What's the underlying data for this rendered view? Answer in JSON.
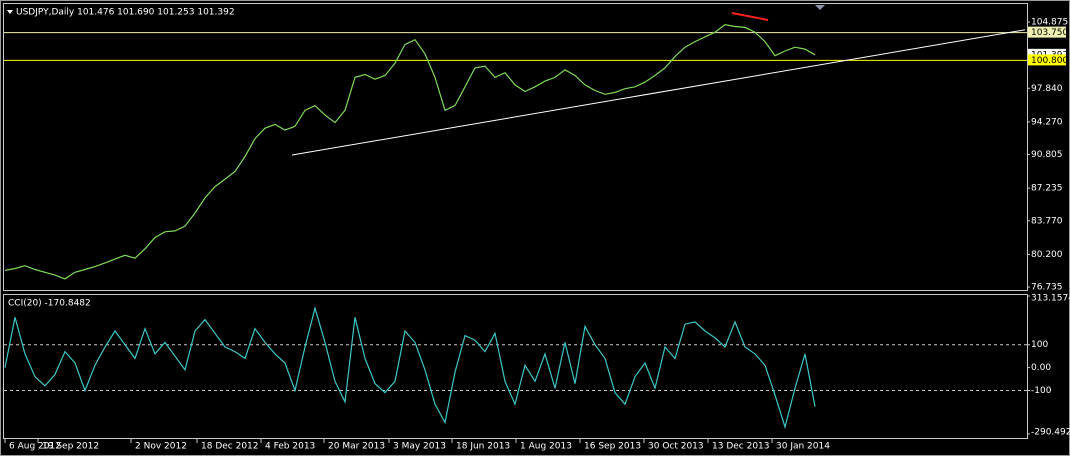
{
  "chart_data": [
    {
      "type": "line",
      "title": "USDJPY,Daily  101.476 101.690 101.253 101.392",
      "x": [
        0,
        1,
        2,
        3,
        4,
        5,
        6,
        7,
        8,
        9,
        10,
        11,
        12,
        13,
        14,
        15,
        16,
        17,
        18,
        19,
        20,
        21,
        22,
        23,
        24,
        25,
        26,
        27,
        28,
        29,
        30,
        31,
        32,
        33,
        34,
        35,
        36,
        37,
        38,
        39,
        40,
        41,
        42,
        43,
        44,
        45,
        46,
        47,
        48,
        49,
        50,
        51,
        52,
        53,
        54,
        55,
        56,
        57,
        58,
        59,
        60,
        61,
        62,
        63,
        64,
        65,
        66,
        67,
        68,
        69,
        70,
        71,
        72,
        73,
        74,
        75,
        76,
        77,
        78,
        79,
        80,
        81
      ],
      "values": [
        78.5,
        78.7,
        79.0,
        78.6,
        78.3,
        78.0,
        77.6,
        78.3,
        78.6,
        78.9,
        79.3,
        79.7,
        80.1,
        79.8,
        80.8,
        82.0,
        82.6,
        82.7,
        83.2,
        84.6,
        86.2,
        87.4,
        88.2,
        89.0,
        90.6,
        92.5,
        93.6,
        94.0,
        93.4,
        93.8,
        95.5,
        96.0,
        95.0,
        94.2,
        95.5,
        99.0,
        99.3,
        98.8,
        99.2,
        100.5,
        102.5,
        103.0,
        101.5,
        99.0,
        95.5,
        96.0,
        98.0,
        100.0,
        100.2,
        99.0,
        99.5,
        98.2,
        97.5,
        98.0,
        98.6,
        99.0,
        99.8,
        99.2,
        98.2,
        97.6,
        97.2,
        97.4,
        97.8,
        98.0,
        98.5,
        99.2,
        100.0,
        101.2,
        102.2,
        102.8,
        103.3,
        103.8,
        104.6,
        104.4,
        104.3,
        103.8,
        102.8,
        101.3,
        101.8,
        102.2,
        102.0,
        101.392
      ],
      "color": "#7ed957",
      "xlim": [
        -0.5,
        102
      ],
      "ylim": [
        76.42,
        106.79
      ],
      "yticks": [
        104.875,
        {
          "value": 97.84,
          "label": "97.840"
        },
        {
          "value": 94.27,
          "label": "94.270"
        },
        90.805,
        87.235,
        {
          "value": 83.77,
          "label": "83.770"
        },
        {
          "value": 80.2,
          "label": "80.200"
        },
        76.735
      ],
      "hlines": [
        {
          "value": 103.75,
          "label": "103.750",
          "color": "#f0f0b0"
        },
        {
          "value": 100.8,
          "label": "100.800",
          "color": "#ffff00"
        }
      ],
      "trendlines": [
        {
          "x": [
            28.7,
            102
          ],
          "y": [
            90.75,
            104.05
          ],
          "color": "#ffffff"
        },
        {
          "x": [
            72.7,
            76.3
          ],
          "y": [
            105.83,
            105.09
          ],
          "color": "#ff2020"
        }
      ]
    },
    {
      "type": "line",
      "title": "CCI(20) -170.8482",
      "x": [
        0,
        1,
        2,
        3,
        4,
        5,
        6,
        7,
        8,
        9,
        10,
        11,
        12,
        13,
        14,
        15,
        16,
        17,
        18,
        19,
        20,
        21,
        22,
        23,
        24,
        25,
        26,
        27,
        28,
        29,
        30,
        31,
        32,
        33,
        34,
        35,
        36,
        37,
        38,
        39,
        40,
        41,
        42,
        43,
        44,
        45,
        46,
        47,
        48,
        49,
        50,
        51,
        52,
        53,
        54,
        55,
        56,
        57,
        58,
        59,
        60,
        61,
        62,
        63,
        64,
        65,
        66,
        67,
        68,
        69,
        70,
        71,
        72,
        73,
        74,
        75,
        76,
        77,
        78,
        79,
        80,
        81
      ],
      "values": [
        0,
        220,
        60,
        -40,
        -80,
        -30,
        70,
        20,
        -100,
        10,
        90,
        160,
        100,
        40,
        170,
        60,
        110,
        50,
        -10,
        160,
        210,
        150,
        90,
        70,
        40,
        170,
        110,
        60,
        20,
        -100,
        90,
        260,
        110,
        -60,
        -150,
        220,
        40,
        -70,
        -110,
        -60,
        160,
        110,
        -10,
        -160,
        -240,
        -20,
        140,
        120,
        70,
        150,
        -60,
        -160,
        10,
        -60,
        60,
        -90,
        110,
        -70,
        180,
        100,
        40,
        -110,
        -160,
        -40,
        20,
        -90,
        90,
        40,
        190,
        200,
        160,
        130,
        90,
        200,
        90,
        60,
        10,
        -120,
        -260,
        -90,
        60,
        -170.8482
      ],
      "color": "#3cc6c6",
      "xlim": [
        -0.5,
        102
      ],
      "ylim": [
        -290.4925,
        313.1574
      ],
      "yticks": [
        313.1574,
        100,
        {
          "value": 0,
          "label": "0.00"
        },
        -100,
        -290.4925
      ],
      "levels": [
        100,
        -100
      ],
      "xticks": [
        {
          "value": 0,
          "label": "6 Aug 2012"
        },
        {
          "value": 3.3,
          "label": "19 Sep 2012"
        },
        {
          "value": 12.6,
          "label": "2 Nov 2012"
        },
        {
          "value": 19.2,
          "label": "18 Dec 2012"
        },
        {
          "value": 25.6,
          "label": "4 Feb 2013"
        },
        {
          "value": 31.9,
          "label": "20 Mar 2013"
        },
        {
          "value": 38.4,
          "label": "3 May 2013"
        },
        {
          "value": 44.7,
          "label": "18 Jun 2013"
        },
        {
          "value": 51.1,
          "label": "1 Aug 2013"
        },
        {
          "value": 57.5,
          "label": "16 Sep 2013"
        },
        {
          "value": 63.9,
          "label": "30 Oct 2013"
        },
        {
          "value": 70.3,
          "label": "13 Dec 2013"
        },
        {
          "value": 76.7,
          "label": "30 Jan 2014"
        }
      ]
    }
  ]
}
